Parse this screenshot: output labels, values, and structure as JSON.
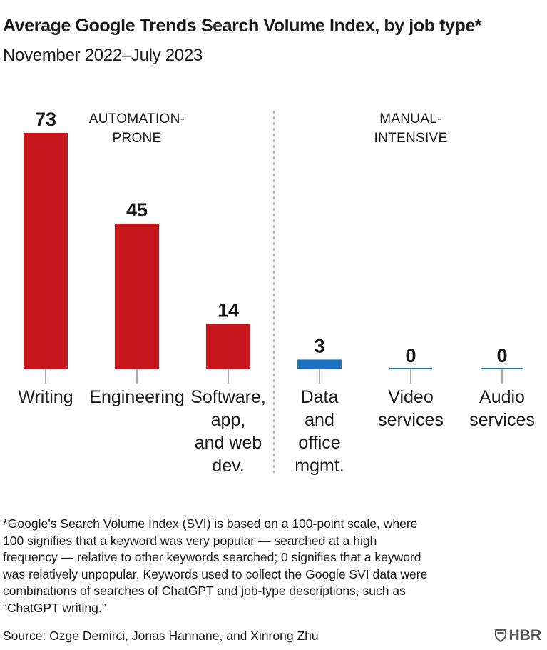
{
  "chart_data": {
    "type": "bar",
    "title": "Average Google Trends Search Volume Index, by job type*",
    "subtitle": "November 2022–July 2023",
    "categories": [
      [
        "Writing"
      ],
      [
        "Engineering"
      ],
      [
        "Software,",
        "app,",
        "and web",
        "dev."
      ],
      [
        "Data",
        "and",
        "office",
        "mgmt."
      ],
      [
        "Video",
        "services"
      ],
      [
        "Audio",
        "services"
      ]
    ],
    "values": [
      73,
      45,
      14,
      3,
      0,
      0
    ],
    "value_labels": [
      "73",
      "45",
      "14",
      "3",
      "0",
      "0"
    ],
    "groups": [
      {
        "lines": [
          "AUTOMATION-",
          "PRONE"
        ],
        "color": "#c8161d",
        "members": [
          0,
          1,
          2
        ]
      },
      {
        "lines": [
          "MANUAL-",
          "INTENSIVE"
        ],
        "color": "#1a73c0",
        "members": [
          3,
          4,
          5
        ]
      }
    ],
    "ylim": [
      0,
      73
    ],
    "grid": false,
    "xlabel": "",
    "ylabel": ""
  },
  "footnote": "*Google’s Search Volume Index (SVI) is based on a 100-point scale, where\n100 signifies that a keyword was very popular — searched at a high\nfrequency — relative to other keywords searched; 0 signifies that a keyword\nwas relatively unpopular. Keywords used to collect the Google SVI data were\ncombinations of searches of ChatGPT and job-type descriptions, such as\n“ChatGPT writing.”",
  "source": "Source: Ozge Demirci, Jonas Hannane, and Xinrong Zhu",
  "logo": {
    "text": "HBR",
    "icon": "hbr-shield-icon"
  },
  "colors": {
    "automation": "#c8161d",
    "manual": "#1a73c0",
    "divider": "#888888",
    "text": "#1a1a1a"
  }
}
